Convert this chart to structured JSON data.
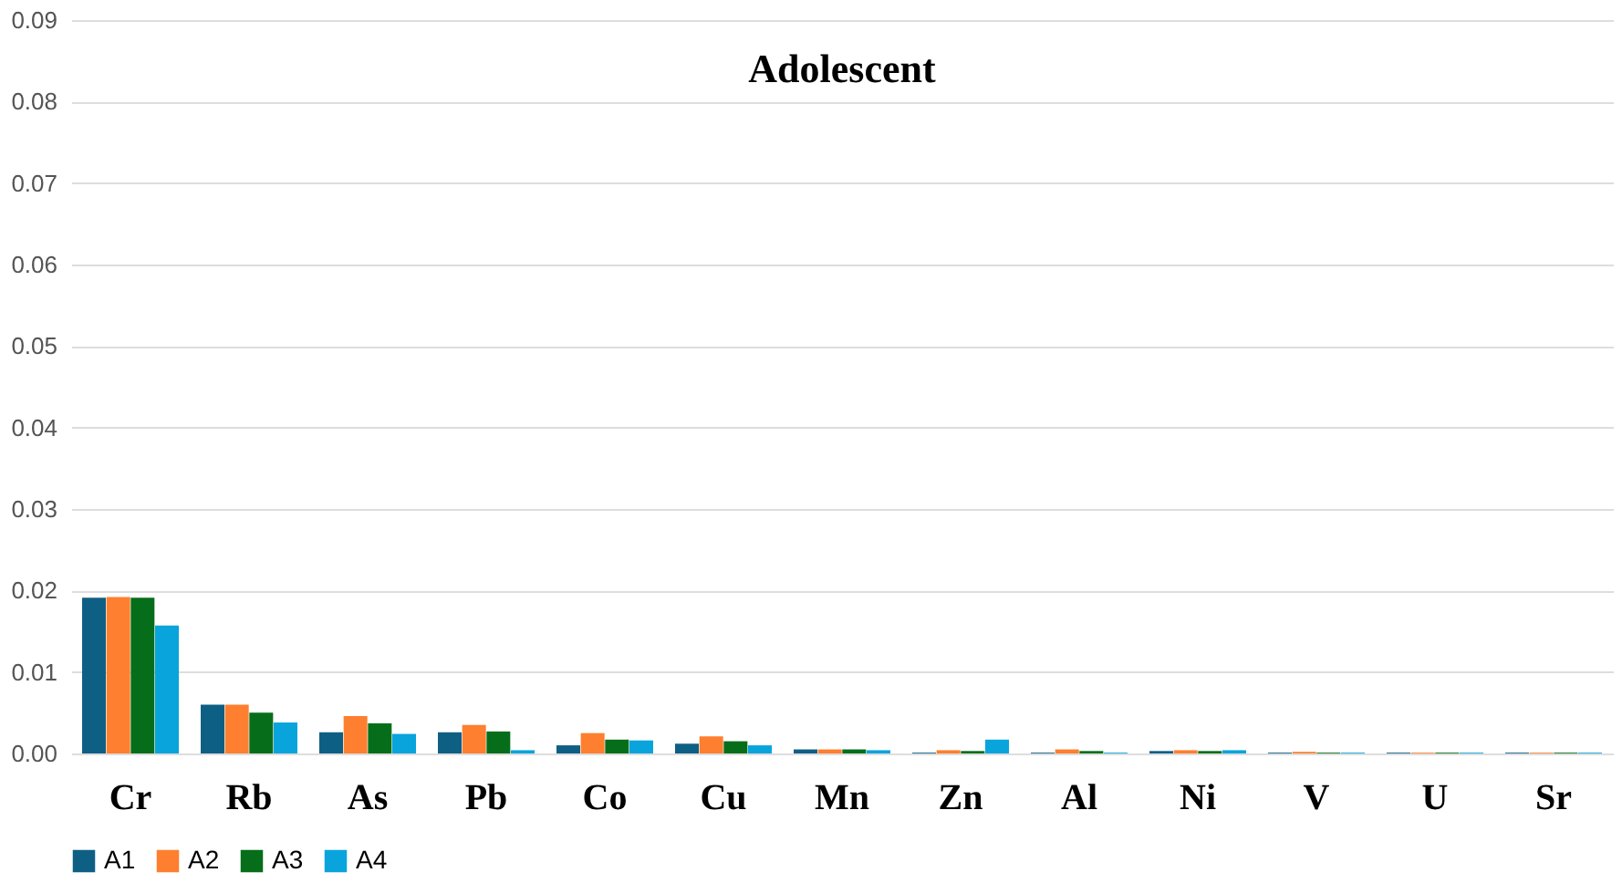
{
  "chart_data": {
    "type": "bar",
    "title": "Adolescent",
    "categories": [
      "Cr",
      "Rb",
      "As",
      "Pb",
      "Co",
      "Cu",
      "Mn",
      "Zn",
      "Al",
      "Ni",
      "V",
      "U",
      "Sr"
    ],
    "series": [
      {
        "name": "A1",
        "color": "#0e5f84",
        "values": [
          0.0191,
          0.006,
          0.0026,
          0.0026,
          0.001,
          0.0012,
          0.0005,
          0.0001,
          0.0001,
          0.0003,
          0.0001,
          0.0001,
          0.0001
        ]
      },
      {
        "name": "A2",
        "color": "#fd7f2f",
        "values": [
          0.0192,
          0.006,
          0.0046,
          0.0035,
          0.0025,
          0.0021,
          0.0005,
          0.0004,
          0.0005,
          0.0004,
          0.0002,
          0.0001,
          0.0001
        ]
      },
      {
        "name": "A3",
        "color": "#066e1a",
        "values": [
          0.0191,
          0.005,
          0.0037,
          0.0027,
          0.0017,
          0.0015,
          0.0005,
          0.0003,
          0.0003,
          0.0003,
          0.0001,
          0.0001,
          0.0001
        ]
      },
      {
        "name": "A4",
        "color": "#09a4dc",
        "values": [
          0.0157,
          0.0038,
          0.0024,
          0.0004,
          0.0016,
          0.001,
          0.0004,
          0.0017,
          0.0001,
          0.0004,
          0.0001,
          0.0001,
          0.0001
        ]
      }
    ],
    "ylim": [
      0,
      0.09
    ],
    "yticks": [
      {
        "value": 0,
        "label": "0.00"
      },
      {
        "value": 0.01,
        "label": "0.01"
      },
      {
        "value": 0.02,
        "label": "0.02"
      },
      {
        "value": 0.03,
        "label": "0.03"
      },
      {
        "value": 0.04,
        "label": "0.04"
      },
      {
        "value": 0.05,
        "label": "0.05"
      },
      {
        "value": 0.06,
        "label": "0.06"
      },
      {
        "value": 0.07,
        "label": "0.07"
      },
      {
        "value": 0.08,
        "label": "0.08"
      },
      {
        "value": 0.09,
        "label": "0.09"
      }
    ],
    "grid": "y",
    "legend": "bottom"
  }
}
